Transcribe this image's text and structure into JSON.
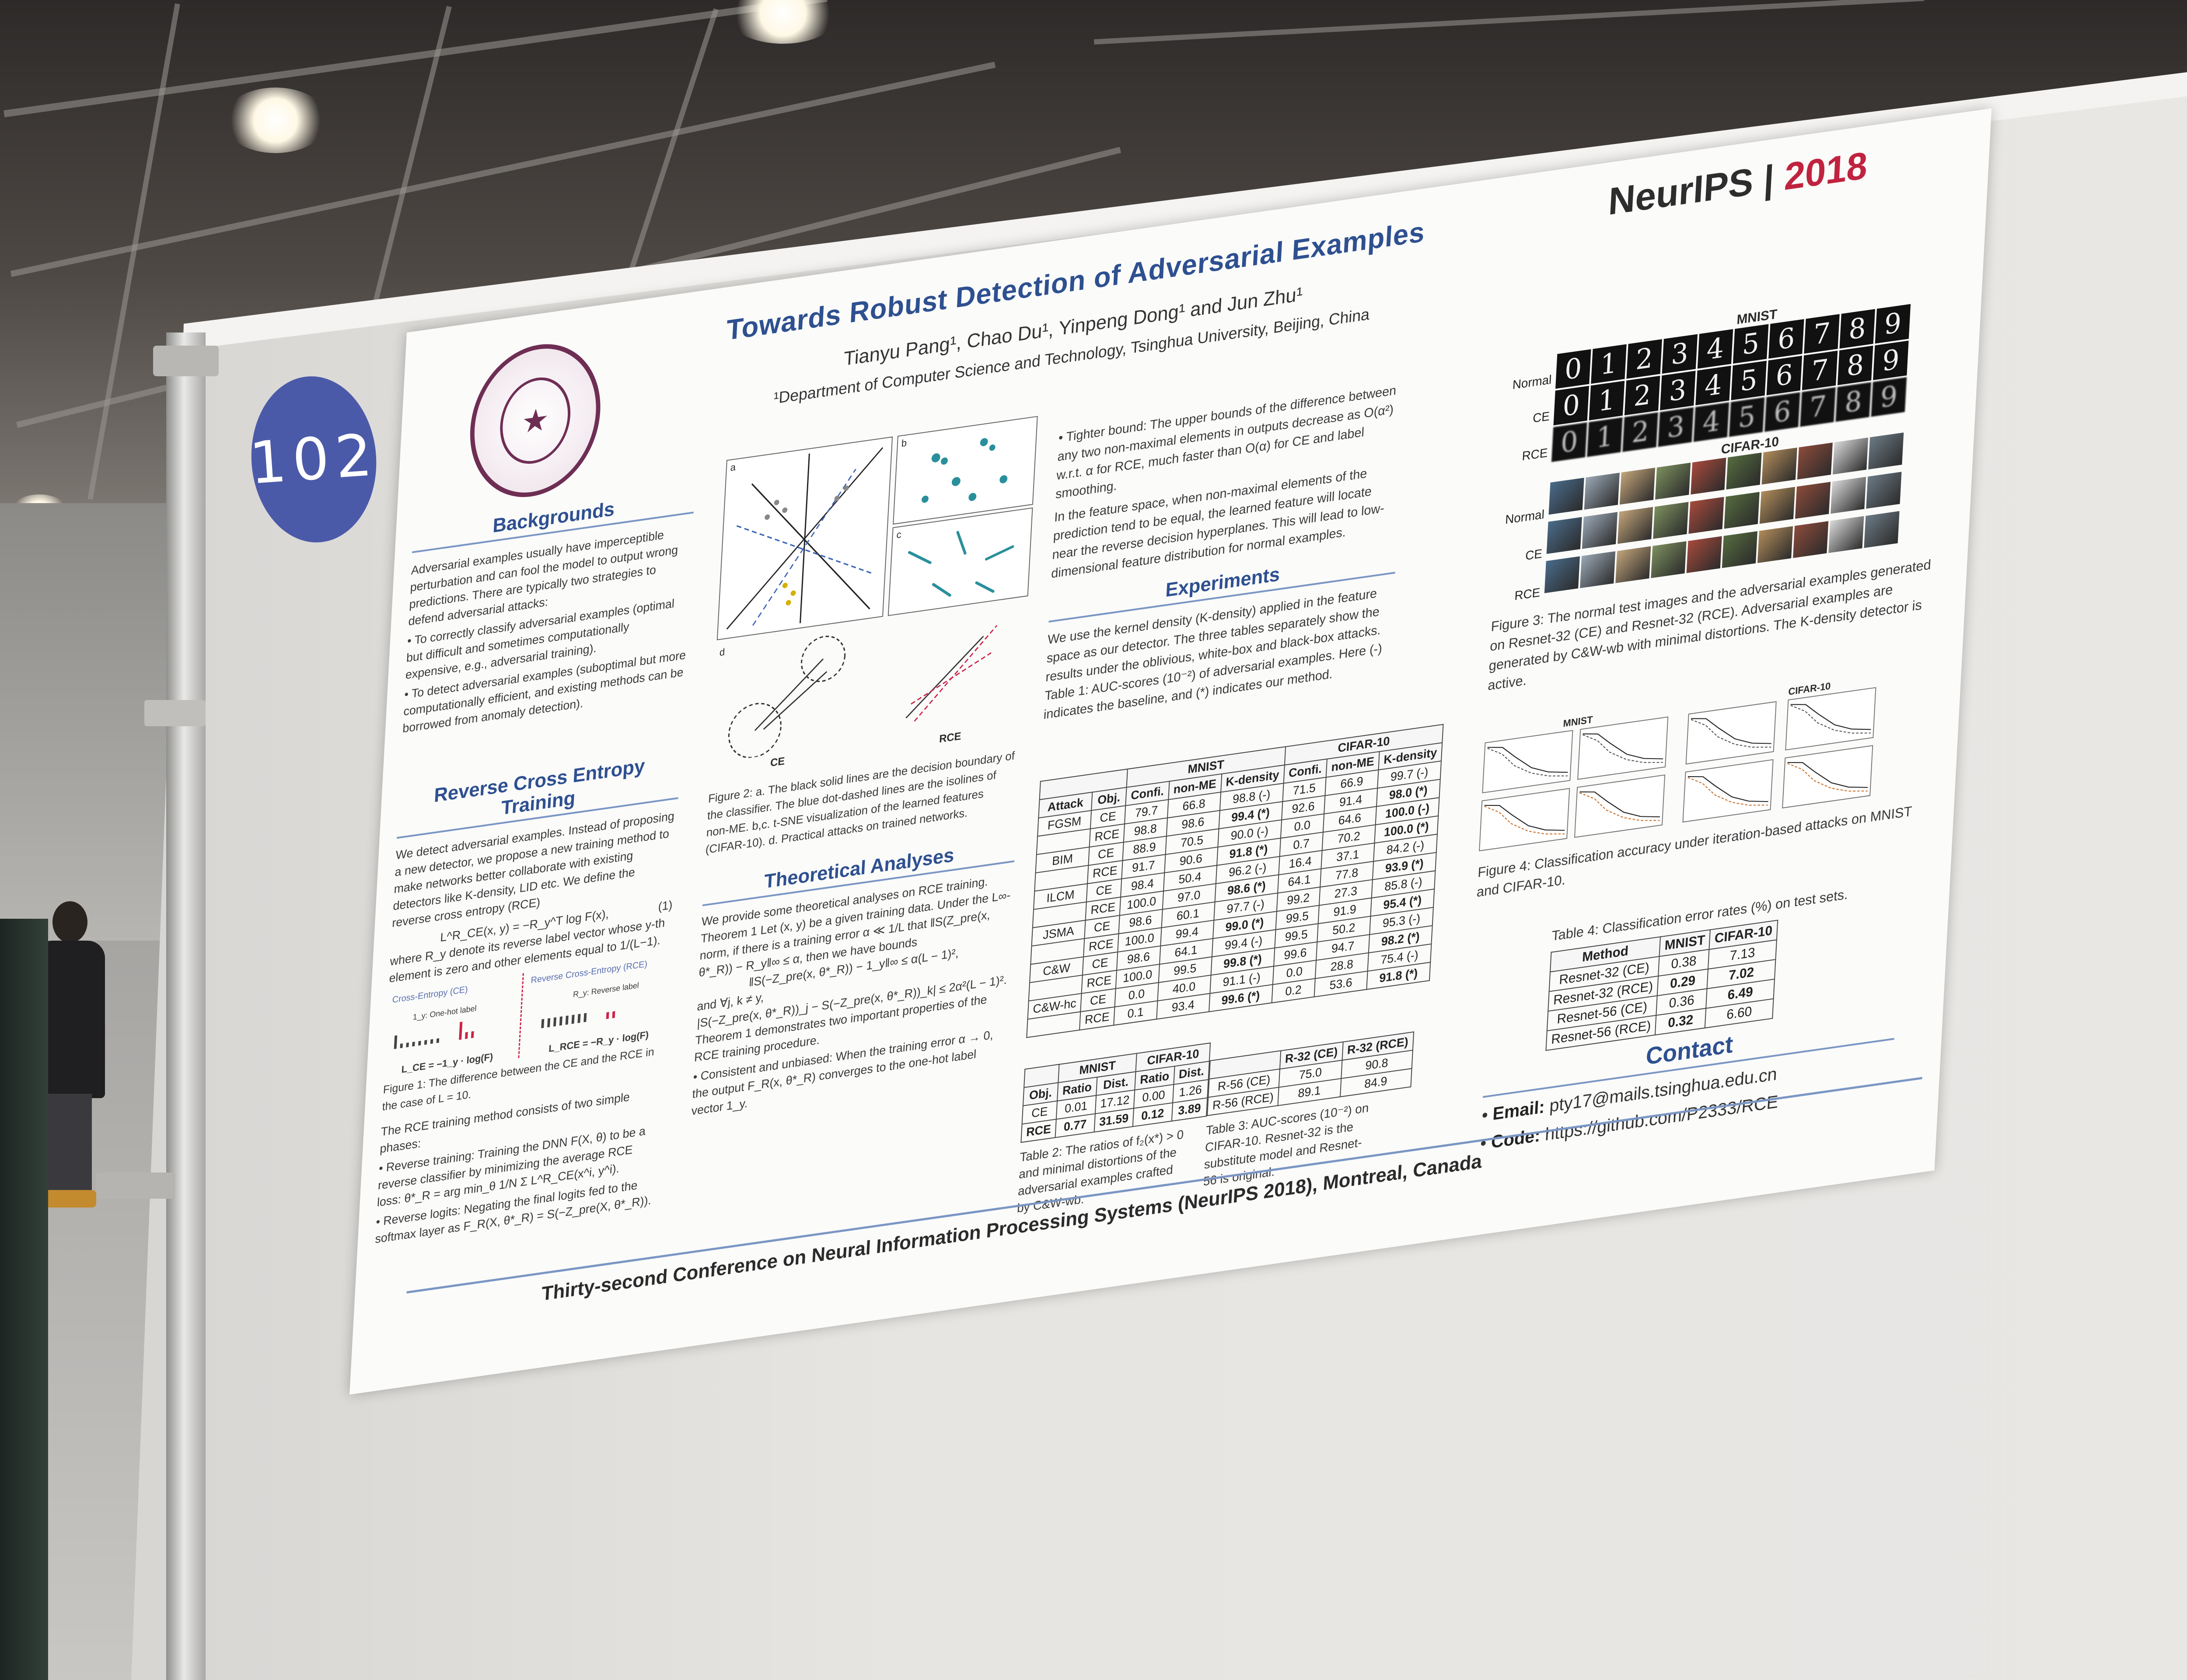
{
  "scene": {
    "colors": {
      "badge": "#4b5aa8",
      "title_blue": "#2e5090",
      "brand_red": "#c0233f",
      "seal_purple": "#6e2e54"
    }
  },
  "badge": {
    "number": "102"
  },
  "poster": {
    "title": "Towards Robust Detection of Adversarial Examples",
    "authors": "Tianyu Pang¹, Chao Du¹, Yinpeng Dong¹ and Jun Zhu¹",
    "affiliation": "¹Department of Computer Science and Technology, Tsinghua University, Beijing, China",
    "conference_logo": {
      "name": "NeurIPS",
      "separator": " | ",
      "year": "2018"
    },
    "backgrounds": {
      "heading": "Backgrounds",
      "intro": "Adversarial examples usually have imperceptible perturbation and can fool the model to output wrong predictions. There are typically two strategies to defend adversarial attacks:",
      "bullet1": "To correctly classify adversarial examples (optimal but difficult and sometimes computationally expensive, e.g., adversarial training).",
      "bullet2": "To detect adversarial examples (suboptimal but more computationally efficient, and existing methods can be borrowed from anomaly detection)."
    },
    "rce": {
      "heading": "Reverse Cross Entropy Training",
      "intro": "We detect adversarial examples. Instead of proposing a new detector, we propose a new training method to make networks better collaborate with existing detectors like K-density, LID etc. We define the reverse cross entropy (RCE)",
      "equation": "L^R_CE(x, y) = −R_y^T log F(x),",
      "eq_number": "(1)",
      "where": "where R_y denote its reverse label vector whose y-th element is zero and other elements equal to 1/(L−1).",
      "fig1_label_ce": "Cross-Entropy (CE)",
      "fig1_label_rce": "Reverse Cross-Entropy (RCE)",
      "fig1_onehot": "1_y: One-hot label",
      "fig1_reverse": "R_y: Reverse label",
      "fig1_loss_ce": "L_CE = −1_y · log(F)",
      "fig1_loss_rce": "L_RCE = −R_y · log(F)",
      "fig1_caption": "Figure 1: The difference between the CE and the RCE in the case of L = 10.",
      "phases_intro": "The RCE training method consists of two simple phases:",
      "phase1": "Reverse training: Training the DNN F(X, θ) to be a reverse classifier by minimizing the average RCE loss: θ*_R = arg min_θ 1/N Σ L^R_CE(x^i, y^i).",
      "phase2": "Reverse logits: Negating the final logits fed to the softmax layer as F_R(X, θ*_R) = S(−Z_pre(X, θ*_R))."
    },
    "figure2": {
      "panel_a": "a",
      "panel_b": "b",
      "panel_c": "c",
      "panel_d": "d",
      "label_ce": "CE",
      "label_rce": "RCE",
      "caption": "Figure 2: a. The black solid lines are the decision boundary of the classifier. The blue dot-dashed lines are the isolines of non-ME. b,c. t-SNE visualization of the learned features (CIFAR-10). d. Practical attacks on trained networks."
    },
    "theory": {
      "heading": "Theoretical Analyses",
      "intro": "We provide some theoretical analyses on RCE training.",
      "theorem": "Theorem 1 Let (x, y) be a given training data. Under the L∞-norm, if there is a training error α ≪ 1/L that ‖S(Z_pre(x, θ*_R)) − R_y‖∞ ≤ α, then we have bounds",
      "bound1": "‖S(−Z_pre(x, θ*_R)) − 1_y‖∞ ≤ α(L − 1)²,",
      "bound2_intro": "and ∀j, k ≠ y,",
      "bound2": "|S(−Z_pre(x, θ*_R))_j − S(−Z_pre(x, θ*_R))_k| ≤ 2α²(L − 1)².",
      "demo": "Theorem 1 demonstrates two important properties of the RCE training procedure.",
      "consistent": "Consistent and unbiased: When the training error α → 0, the output F_R(x, θ*_R) converges to the one-hot label vector 1_y."
    },
    "tighter": {
      "bullet": "Tighter bound: The upper bounds of the difference between any two non-maximal elements in outputs decrease as O(α²) w.r.t. α for RCE, much faster than O(α) for CE and label smoothing.",
      "feature_space": "In the feature space, when non-maximal elements of the prediction tend to be equal, the learned feature will locate near the reverse decision hyperplanes. This will lead to low-dimensional feature distribution for normal examples."
    },
    "experiments": {
      "heading": "Experiments",
      "text": "We use the kernel density (K-density) applied in the feature space as our detector. The three tables separately show the results under the oblivious, white-box and black-box attacks.",
      "table1_caption": "Table 1: AUC-scores (10⁻²) of adversarial examples. Here (-) indicates the baseline, and (*) indicates our method."
    },
    "table1": {
      "group_headers": [
        "MNIST",
        "CIFAR-10"
      ],
      "headers": [
        "Attack",
        "Obj.",
        "Confi.",
        "non-ME",
        "K-density",
        "Confi.",
        "non-ME",
        "K-density"
      ],
      "rows": [
        [
          "FGSM",
          "CE",
          "79.7",
          "66.8",
          "98.8 (-)",
          "71.5",
          "66.9",
          "99.7 (-)"
        ],
        [
          "",
          "RCE",
          "98.8",
          "98.6",
          "99.4 (*)",
          "92.6",
          "91.4",
          "98.0 (*)"
        ],
        [
          "BIM",
          "CE",
          "88.9",
          "70.5",
          "90.0 (-)",
          "0.0",
          "64.6",
          "100.0 (-)"
        ],
        [
          "",
          "RCE",
          "91.7",
          "90.6",
          "91.8 (*)",
          "0.7",
          "70.2",
          "100.0 (*)"
        ],
        [
          "ILCM",
          "CE",
          "98.4",
          "50.4",
          "96.2 (-)",
          "16.4",
          "37.1",
          "84.2 (-)"
        ],
        [
          "",
          "RCE",
          "100.0",
          "97.0",
          "98.6 (*)",
          "64.1",
          "77.8",
          "93.9 (*)"
        ],
        [
          "JSMA",
          "CE",
          "98.6",
          "60.1",
          "97.7 (-)",
          "99.2",
          "27.3",
          "85.8 (-)"
        ],
        [
          "",
          "RCE",
          "100.0",
          "99.4",
          "99.0 (*)",
          "99.5",
          "91.9",
          "95.4 (*)"
        ],
        [
          "C&W",
          "CE",
          "98.6",
          "64.1",
          "99.4 (-)",
          "99.5",
          "50.2",
          "95.3 (-)"
        ],
        [
          "",
          "RCE",
          "100.0",
          "99.5",
          "99.8 (*)",
          "99.6",
          "94.7",
          "98.2 (*)"
        ],
        [
          "C&W-hc",
          "CE",
          "0.0",
          "40.0",
          "91.1 (-)",
          "0.0",
          "28.8",
          "75.4 (-)"
        ],
        [
          "",
          "RCE",
          "0.1",
          "93.4",
          "99.6 (*)",
          "0.2",
          "53.6",
          "91.8 (*)"
        ]
      ]
    },
    "table2": {
      "group_headers": [
        "MNIST",
        "CIFAR-10"
      ],
      "headers": [
        "Obj.",
        "Ratio",
        "Dist.",
        "Ratio",
        "Dist."
      ],
      "rows": [
        [
          "CE",
          "0.01",
          "17.12",
          "0.00",
          "1.26"
        ],
        [
          "RCE",
          "0.77",
          "31.59",
          "0.12",
          "3.89"
        ]
      ],
      "caption": "Table 2: The ratios of f₂(x*) > 0 and minimal distortions of the adversarial examples crafted by C&W-wb."
    },
    "table3": {
      "headers": [
        "",
        "R-32 (CE)",
        "R-32 (RCE)"
      ],
      "rows": [
        [
          "R-56 (CE)",
          "75.0",
          "90.8"
        ],
        [
          "R-56 (RCE)",
          "89.1",
          "84.9"
        ]
      ],
      "caption": "Table 3: AUC-scores (10⁻²) on CIFAR-10. Resnet-32 is the substitute model and Resnet-56 is original."
    },
    "figure3": {
      "mnist_title": "MNIST",
      "cifar_title": "CIFAR-10",
      "row_labels": [
        "Normal",
        "CE",
        "RCE"
      ],
      "digits": [
        "0",
        "1",
        "2",
        "3",
        "4",
        "5",
        "6",
        "7",
        "8",
        "9"
      ],
      "caption": "Figure 3: The normal test images and the adversarial examples generated on Resnet-32 (CE) and Resnet-32 (RCE). Adversarial examples are generated by C&W-wb with minimal distortions. The K-density detector is active."
    },
    "figure4": {
      "mnist_title": "MNIST",
      "cifar_title": "CIFAR-10",
      "caption": "Figure 4: Classification accuracy under iteration-based attacks on MNIST and CIFAR-10."
    },
    "table4": {
      "caption": "Table 4: Classification error rates (%) on test sets.",
      "headers": [
        "Method",
        "MNIST",
        "CIFAR-10"
      ],
      "rows": [
        [
          "Resnet-32 (CE)",
          "0.38",
          "7.13"
        ],
        [
          "Resnet-32 (RCE)",
          "0.29",
          "7.02"
        ],
        [
          "Resnet-56 (CE)",
          "0.36",
          "6.49"
        ],
        [
          "Resnet-56 (RCE)",
          "0.32",
          "6.60"
        ]
      ]
    },
    "contact": {
      "heading": "Contact",
      "email_label": "Email:",
      "email": "pty17@mails.tsinghua.edu.cn",
      "code_label": "Code:",
      "code": "https://github.com/P2333/RCE"
    },
    "footer": "Thirty-second Conference on Neural Information Processing Systems (NeurIPS 2018), Montreal, Canada"
  }
}
